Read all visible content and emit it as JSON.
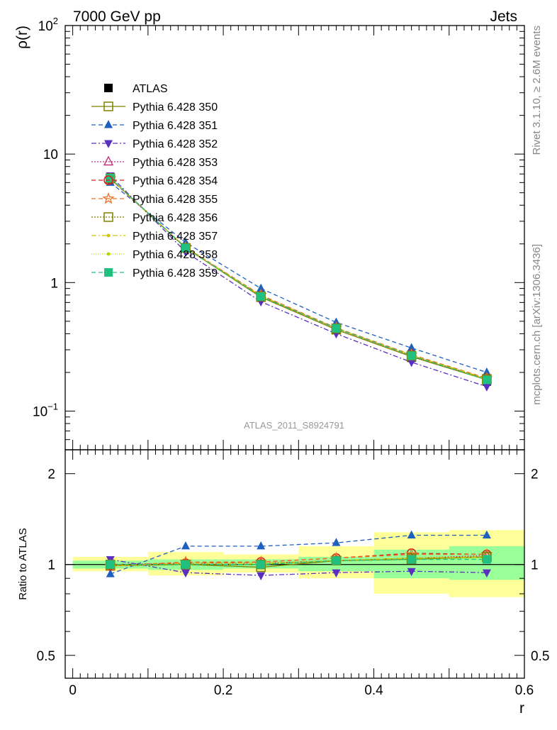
{
  "header": {
    "left_title": "7000 GeV pp",
    "right_title": "Jets"
  },
  "side_text": {
    "rivet": "Rivet 3.1.10, ≥ 2.6M events",
    "mcplots": "mcplots.cern.ch [arXiv:1306.3436]"
  },
  "analysis_label": "ATLAS_2011_S8924791",
  "chart_data": [
    {
      "type": "line",
      "panel": "main",
      "ylabel": "ρ(r)",
      "yscale": "log",
      "ylim": [
        0.05,
        100
      ],
      "xlim": [
        -0.01,
        0.6
      ],
      "ytick_labels": [
        {
          "value": 0.1,
          "mantissa": "10",
          "exp": "−1"
        },
        {
          "value": 1,
          "mantissa": "1",
          "exp": ""
        },
        {
          "value": 10,
          "mantissa": "10",
          "exp": ""
        },
        {
          "value": 100,
          "mantissa": "10",
          "exp": "2"
        }
      ],
      "x": [
        0.05,
        0.15,
        0.25,
        0.35,
        0.45,
        0.55
      ],
      "legend_position": "top-left",
      "data": {
        "name": "ATLAS",
        "values": [
          6.5,
          1.85,
          0.78,
          0.43,
          0.26,
          0.17
        ],
        "color": "#000000",
        "marker": "square"
      },
      "series": [
        {
          "name": "Pythia 6.428 350",
          "values": [
            6.45,
            1.86,
            0.77,
            0.43,
            0.265,
            0.175
          ],
          "color": "#808000",
          "dash": "",
          "marker": "open-square"
        },
        {
          "name": "Pythia 6.428 351",
          "values": [
            6.0,
            2.05,
            0.9,
            0.49,
            0.31,
            0.2
          ],
          "color": "#1f5fbf",
          "dash": "6,4",
          "marker": "triangle-up"
        },
        {
          "name": "Pythia 6.428 352",
          "values": [
            6.8,
            1.73,
            0.71,
            0.4,
            0.24,
            0.155
          ],
          "color": "#5b2fbf",
          "dash": "7,3,2,3",
          "marker": "triangle-down"
        },
        {
          "name": "Pythia 6.428 353",
          "values": [
            6.45,
            1.87,
            0.79,
            0.44,
            0.27,
            0.178
          ],
          "color": "#c0307a",
          "dash": "2,2",
          "marker": "open-triangle-up"
        },
        {
          "name": "Pythia 6.428 354",
          "values": [
            6.4,
            1.87,
            0.79,
            0.44,
            0.275,
            0.18
          ],
          "color": "#d42020",
          "dash": "6,4",
          "marker": "open-circle"
        },
        {
          "name": "Pythia 6.428 355",
          "values": [
            6.45,
            1.88,
            0.8,
            0.445,
            0.275,
            0.18
          ],
          "color": "#f07020",
          "dash": "6,4",
          "marker": "open-star"
        },
        {
          "name": "Pythia 6.428 356",
          "values": [
            6.5,
            1.86,
            0.78,
            0.44,
            0.27,
            0.178
          ],
          "color": "#808000",
          "dash": "2,2",
          "marker": "open-square"
        },
        {
          "name": "Pythia 6.428 357",
          "values": [
            6.45,
            1.87,
            0.79,
            0.44,
            0.272,
            0.179
          ],
          "color": "#d4c400",
          "dash": "7,3,2,3",
          "marker": "dot"
        },
        {
          "name": "Pythia 6.428 358",
          "values": [
            6.45,
            1.86,
            0.78,
            0.44,
            0.27,
            0.177
          ],
          "color": "#b8d400",
          "dash": "1,2",
          "marker": "dot"
        },
        {
          "name": "Pythia 6.428 359",
          "values": [
            6.5,
            1.86,
            0.78,
            0.44,
            0.27,
            0.175
          ],
          "color": "#20c080",
          "dash": "6,4",
          "marker": "square"
        }
      ]
    },
    {
      "type": "line",
      "panel": "ratio",
      "ylabel": "Ratio to ATLAS",
      "xlabel": "r",
      "yscale": "log",
      "ylim": [
        0.42,
        2.4
      ],
      "xlim": [
        -0.01,
        0.6
      ],
      "xticks": [
        0,
        0.2,
        0.4,
        0.6
      ],
      "xtick_labels": [
        "0",
        "0.2",
        "0.4",
        "0.6"
      ],
      "yticks": [
        0.5,
        1,
        2
      ],
      "ytick_labels": [
        "0.5",
        "1",
        "2"
      ],
      "x": [
        0.05,
        0.15,
        0.25,
        0.35,
        0.45,
        0.55
      ],
      "bins": [
        [
          0,
          0.1
        ],
        [
          0.1,
          0.2
        ],
        [
          0.2,
          0.3
        ],
        [
          0.3,
          0.4
        ],
        [
          0.4,
          0.5
        ],
        [
          0.5,
          0.6
        ]
      ],
      "band_outer": {
        "lo": [
          0.95,
          0.92,
          0.94,
          0.9,
          0.8,
          0.78
        ],
        "hi": [
          1.06,
          1.1,
          1.08,
          1.15,
          1.28,
          1.3
        ],
        "color": "#ffff99"
      },
      "band_inner": {
        "lo": [
          0.97,
          0.96,
          0.97,
          0.95,
          0.9,
          0.89
        ],
        "hi": [
          1.03,
          1.04,
          1.04,
          1.06,
          1.12,
          1.15
        ],
        "color": "#99ff99"
      },
      "series": [
        {
          "name": "Pythia 6.428 350",
          "values": [
            0.99,
            1.0,
            0.98,
            1.03,
            1.04,
            1.06
          ]
        },
        {
          "name": "Pythia 6.428 351",
          "values": [
            0.93,
            1.15,
            1.15,
            1.18,
            1.25,
            1.25
          ]
        },
        {
          "name": "Pythia 6.428 352",
          "values": [
            1.04,
            0.94,
            0.92,
            0.94,
            0.95,
            0.94
          ]
        },
        {
          "name": "Pythia 6.428 353",
          "values": [
            1.0,
            1.01,
            1.01,
            1.03,
            1.05,
            1.07
          ]
        },
        {
          "name": "Pythia 6.428 354",
          "values": [
            0.99,
            1.01,
            1.02,
            1.05,
            1.09,
            1.08
          ]
        },
        {
          "name": "Pythia 6.428 355",
          "values": [
            0.99,
            1.02,
            1.02,
            1.05,
            1.08,
            1.08
          ]
        },
        {
          "name": "Pythia 6.428 356",
          "values": [
            1.0,
            1.0,
            1.0,
            1.03,
            1.05,
            1.06
          ]
        },
        {
          "name": "Pythia 6.428 357",
          "values": [
            0.99,
            1.01,
            1.01,
            1.03,
            1.05,
            1.06
          ]
        },
        {
          "name": "Pythia 6.428 358",
          "values": [
            0.99,
            1.0,
            1.0,
            1.03,
            1.05,
            1.05
          ]
        },
        {
          "name": "Pythia 6.428 359",
          "values": [
            1.0,
            1.0,
            1.0,
            1.03,
            1.04,
            1.04
          ]
        }
      ]
    }
  ]
}
